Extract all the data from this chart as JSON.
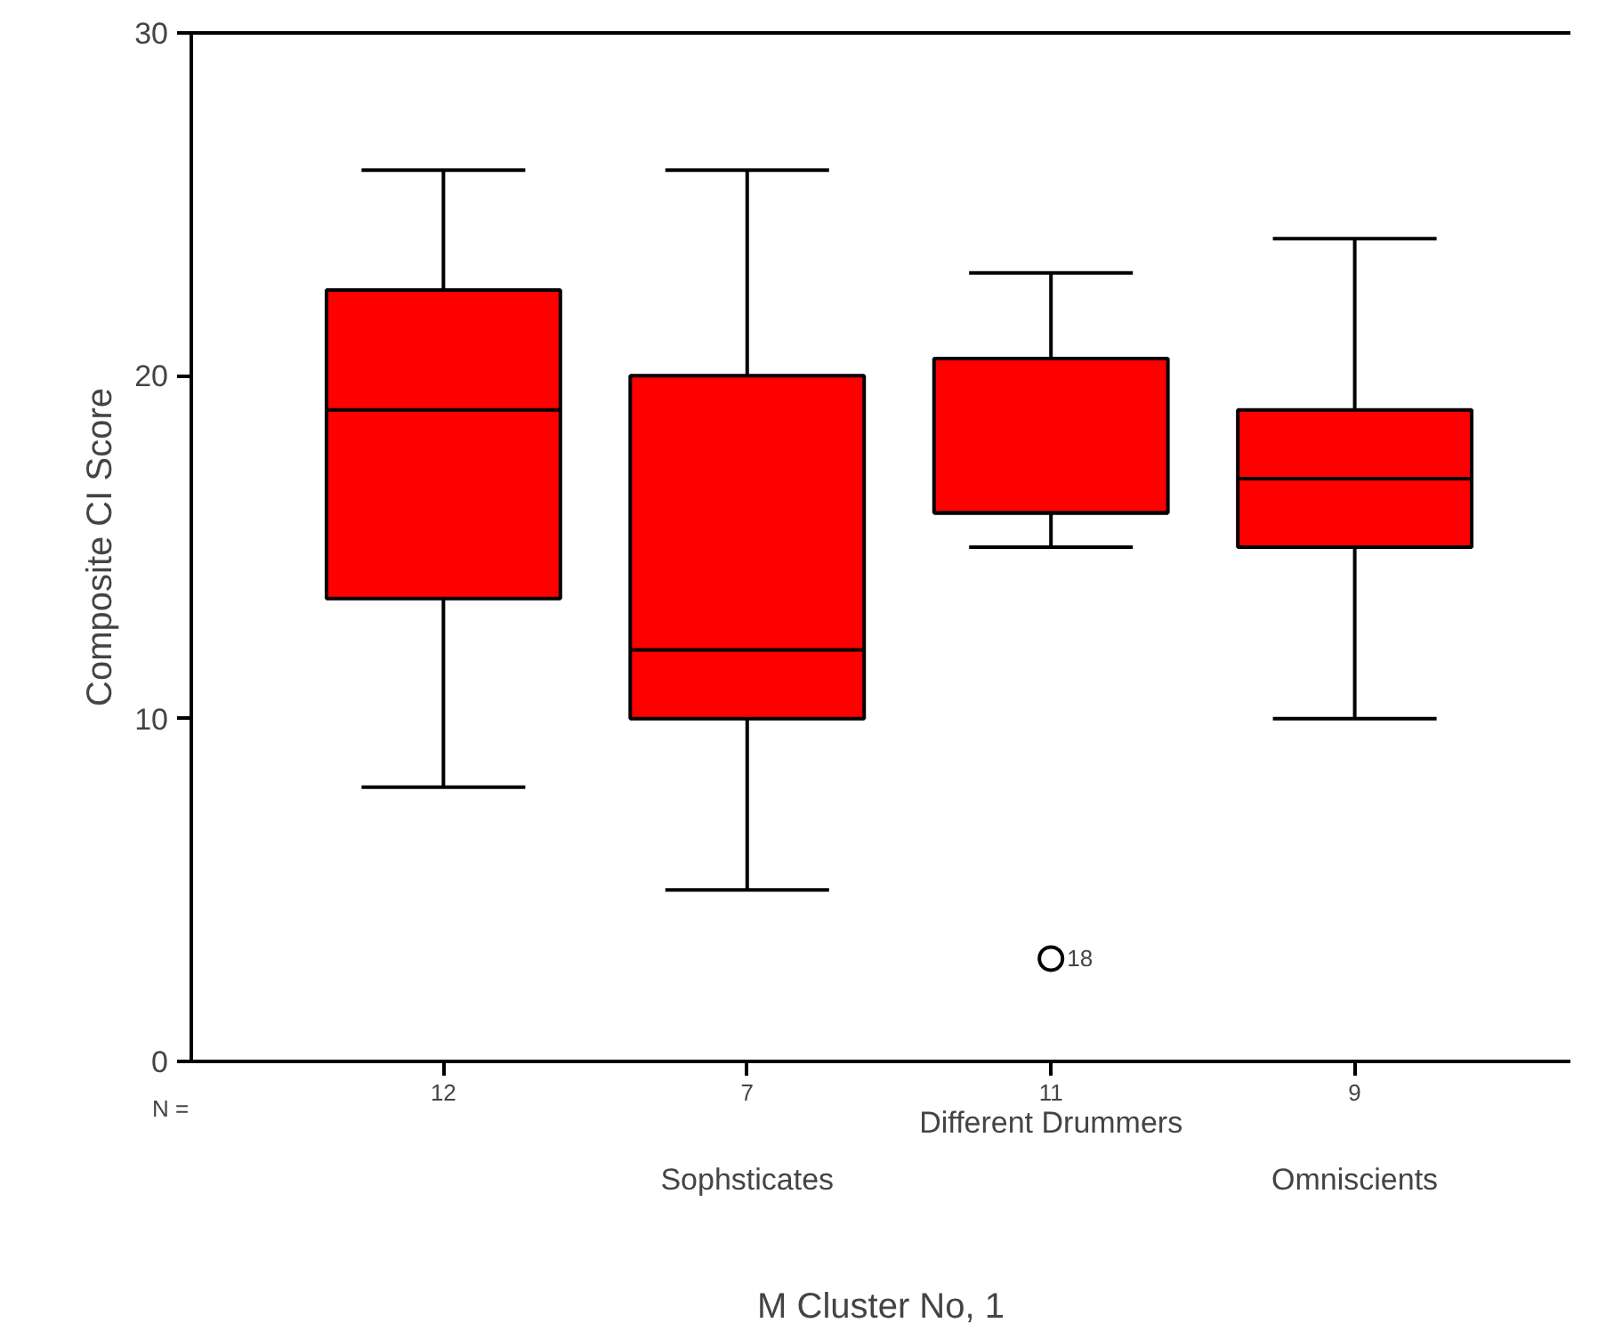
{
  "chart_data": {
    "type": "box",
    "categories": [
      null,
      "Sophsticates",
      "Different Drummers",
      "Omniscients"
    ],
    "xlabel": "M Cluster No, 1",
    "ylabel": "Composite CI Score",
    "ylim": [
      0,
      30
    ],
    "yticks": [
      0,
      10,
      20,
      30
    ],
    "series": [
      {
        "color": "#ff0000",
        "boxes": [
          {
            "low": 8,
            "q1": 13.5,
            "median": 19,
            "q3": 22.5,
            "high": 26
          },
          {
            "low": 5,
            "q1": 10,
            "median": 12,
            "q3": 20,
            "high": 26
          },
          {
            "low": 15,
            "q1": 16,
            "median": 16,
            "q3": 20.5,
            "high": 23,
            "outliers": [
              3
            ]
          },
          {
            "low": 10,
            "q1": 15,
            "median": 17,
            "q3": 19,
            "high": 24
          }
        ]
      }
    ],
    "annotations": [
      "N =",
      "12",
      "7",
      "11",
      "9",
      "18"
    ]
  }
}
